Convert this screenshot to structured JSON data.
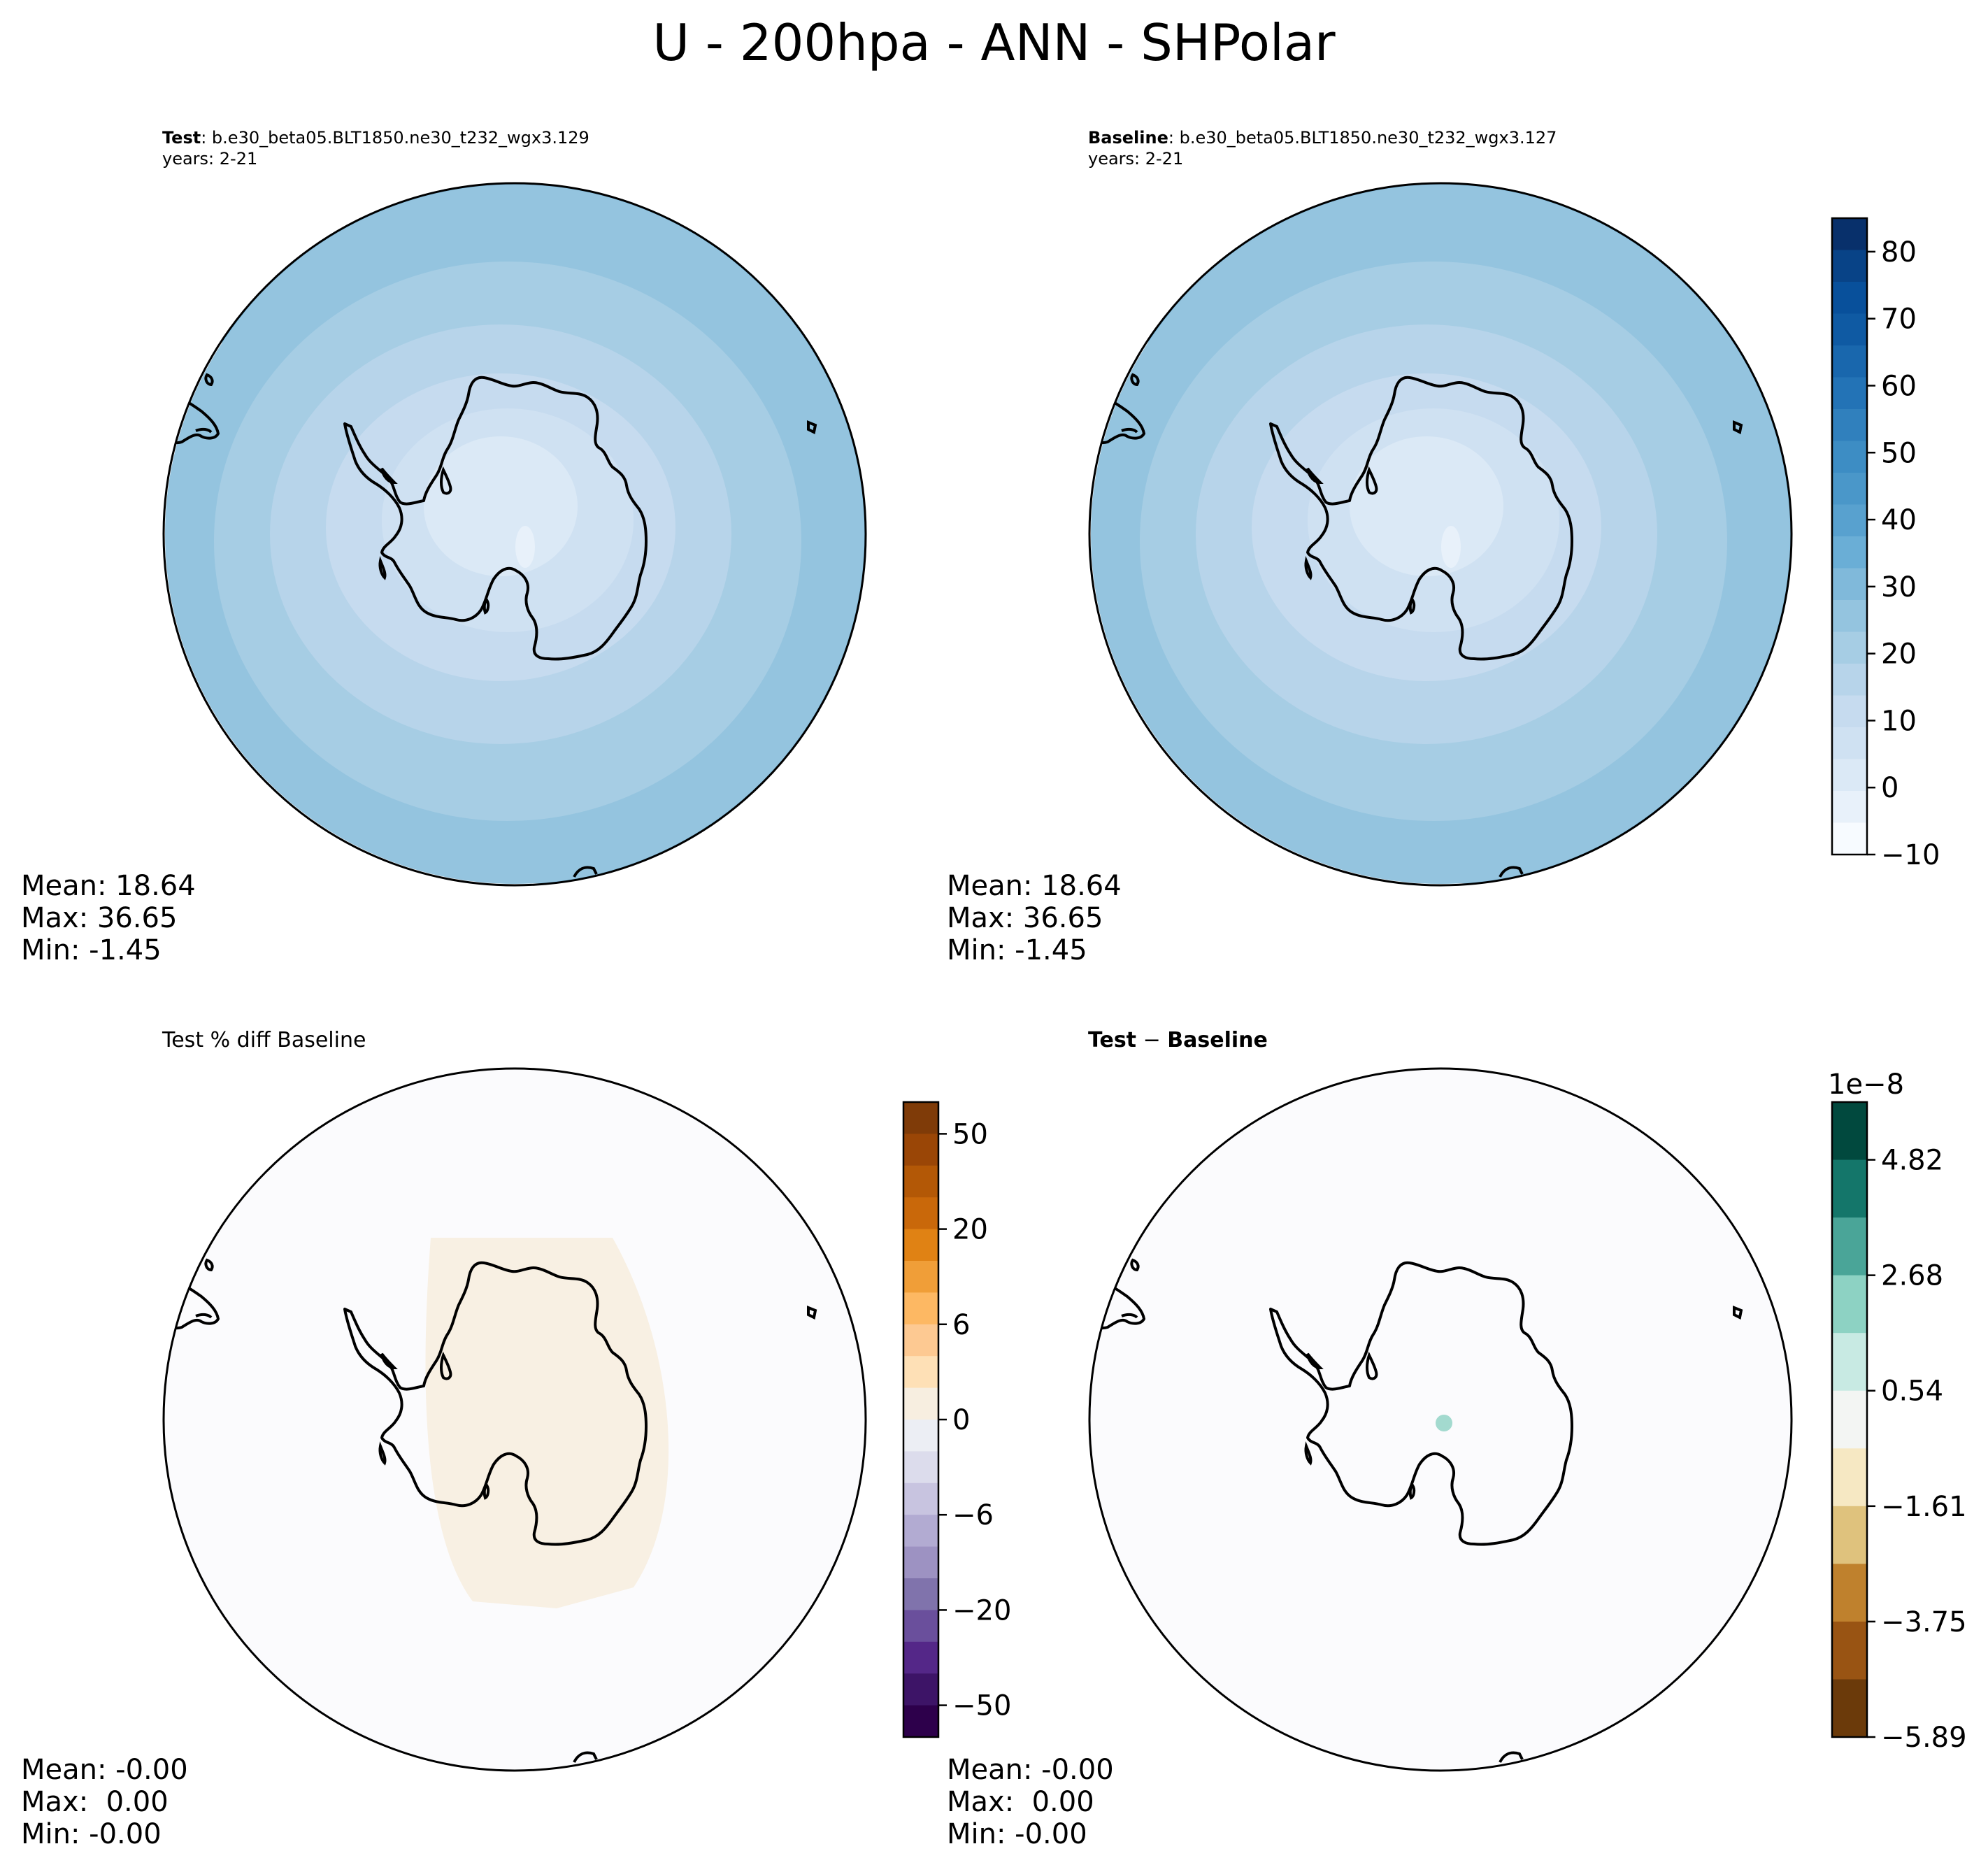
{
  "suptitle": "U - 200hpa - ANN - SHPolar",
  "panels": {
    "test": {
      "title_bold": "Test",
      "title_rest": ": b.e30_beta05.BLT1850.ne30_t232_wgx3.129",
      "years": "years: 2-21",
      "stats": [
        "Mean: 18.64",
        "Max: 36.65",
        "Min: -1.45"
      ]
    },
    "baseline": {
      "title_bold": "Baseline",
      "title_rest": ": b.e30_beta05.BLT1850.ne30_t232_wgx3.127",
      "years": "years: 2-21",
      "stats": [
        "Mean: 18.64",
        "Max: 36.65",
        "Min: -1.45"
      ]
    },
    "pctdiff": {
      "title": "Test % diff Baseline",
      "stats": [
        "Mean: -0.00",
        "Max:  0.00",
        "Min: -0.00"
      ]
    },
    "diff": {
      "title_bold_a": "Test",
      "title_minus": " − ",
      "title_bold_b": "Baseline",
      "stats": [
        "Mean: -0.00",
        "Max:  0.00",
        "Min: -0.00"
      ]
    }
  },
  "chart_data": [
    {
      "type": "heatmap",
      "projection": "south polar stereographic",
      "panel": "Test",
      "variable": "U",
      "level": "200hpa",
      "season": "ANN",
      "colormap": "Blues",
      "colorbar_ticks": [
        80,
        70,
        60,
        50,
        40,
        30,
        20,
        10,
        0,
        -10
      ],
      "colorbar_range": [
        -10,
        85
      ],
      "mean": 18.64,
      "max": 36.65,
      "min": -1.45
    },
    {
      "type": "heatmap",
      "projection": "south polar stereographic",
      "panel": "Baseline",
      "colormap": "Blues",
      "shares_colorbar_with": "Test",
      "mean": 18.64,
      "max": 36.65,
      "min": -1.45
    },
    {
      "type": "heatmap",
      "projection": "south polar stereographic",
      "panel": "Test % diff Baseline",
      "colormap": "PuOr (purple negative, orange positive)",
      "colorbar_ticks": [
        "50",
        "20",
        "6",
        "0",
        "−6",
        "−20",
        "−50"
      ],
      "colorbar_colors": [
        "#7f3b08",
        "#9a4606",
        "#b35806",
        "#c9680a",
        "#e08214",
        "#f09e38",
        "#fdb863",
        "#fdc992",
        "#fee0b6",
        "#f7eee0",
        "#eceef4",
        "#dcdcec",
        "#c8c4e0",
        "#b2abd2",
        "#9d92c2",
        "#8073ac",
        "#6a4f9c",
        "#542788",
        "#3d1467",
        "#2d004b"
      ],
      "mean": -0.0,
      "max": 0.0,
      "min": -0.0
    },
    {
      "type": "heatmap",
      "projection": "south polar stereographic",
      "panel": "Test − Baseline",
      "colormap": "BrBG (brown negative, teal positive)",
      "colorbar_multiplier": "1e−8",
      "colorbar_ticks": [
        "4.82",
        "2.68",
        "0.54",
        "−1.61",
        "−3.75",
        "−5.89"
      ],
      "colorbar_colors": [
        "#01493e",
        "#14766a",
        "#4aa598",
        "#8dd2c3",
        "#c8eae3",
        "#f3f5f3",
        "#f6e8c3",
        "#dfc27d",
        "#bf812d",
        "#995413",
        "#6b3a0a"
      ],
      "mean": -0.0,
      "max": 0.0,
      "min": -0.0
    }
  ],
  "blues": [
    "#f7fbff",
    "#e8f1fa",
    "#dbe9f6",
    "#cfe1f2",
    "#c6dbef",
    "#b7d4ea",
    "#a6cde4",
    "#94c4df",
    "#80b9da",
    "#6aaed6",
    "#58a1cf",
    "#4a97c9",
    "#3d8dc4",
    "#3080bd",
    "#2373b6",
    "#1967ad",
    "#0f5aa3",
    "#08509b",
    "#084387",
    "#08306b"
  ],
  "blues_ticks": [
    "80",
    "70",
    "60",
    "50",
    "40",
    "30",
    "20",
    "10",
    "0",
    "−10"
  ],
  "pctdiff_colors": [
    "#7f3b08",
    "#9a4606",
    "#b35806",
    "#c9680a",
    "#e08214",
    "#f09e38",
    "#fdb863",
    "#fdc992",
    "#fee0b6",
    "#f7eee0",
    "#eceef4",
    "#dcdcec",
    "#c8c4e0",
    "#b2abd2",
    "#9d92c2",
    "#8073ac",
    "#6a4f9c",
    "#542788",
    "#3d1467",
    "#2d004b"
  ],
  "pctdiff_ticks": [
    "50",
    "20",
    "6",
    "0",
    "−6",
    "−20",
    "−50"
  ],
  "diff_colors": [
    "#01493e",
    "#14766a",
    "#4aa598",
    "#8dd2c3",
    "#c8eae3",
    "#f3f5f3",
    "#f6e8c3",
    "#dfc27d",
    "#bf812d",
    "#995413",
    "#6b3a0a"
  ],
  "diff_ticks": [
    "4.82",
    "2.68",
    "0.54",
    "−1.61",
    "−3.75",
    "−5.89"
  ],
  "diff_multiplier": "1e−8"
}
